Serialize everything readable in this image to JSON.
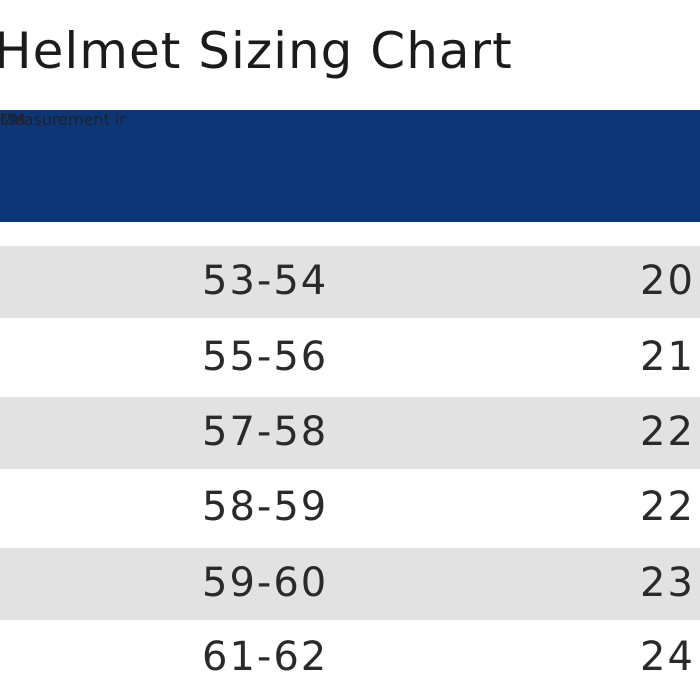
{
  "title": "Helmet Sizing Chart",
  "header": {
    "measurement_label": "Measurement ir",
    "cm_label": "CM"
  },
  "rows": [
    {
      "cm": "53-54",
      "inches": "20"
    },
    {
      "cm": "55-56",
      "inches": "21"
    },
    {
      "cm": "57-58",
      "inches": "22"
    },
    {
      "cm": "58-59",
      "inches": "22"
    },
    {
      "cm": "59-60",
      "inches": "23"
    },
    {
      "cm": "61-62",
      "inches": "24"
    }
  ],
  "colors": {
    "header_bg": "#0d3677",
    "shaded_row": "#e2e2e2",
    "text": "#2a2a2a"
  }
}
